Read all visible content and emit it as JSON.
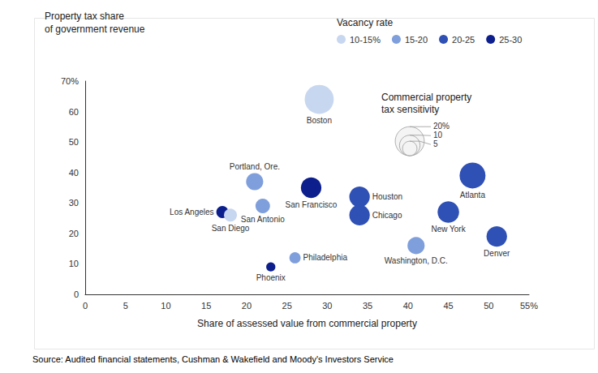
{
  "chart_data": {
    "type": "scatter",
    "y_label": "Property tax share\nof government revenue",
    "x_label": "Share of assessed value from commercial property",
    "source": "Source: Audited financial statements, Cushman & Wakefield and Moody's Investors Service",
    "legend_title": "Vacancy rate",
    "legend": "top-right",
    "grid": false,
    "xlim": [
      0,
      55
    ],
    "xticks": [
      0,
      5,
      10,
      15,
      20,
      25,
      30,
      35,
      40,
      45,
      50,
      {
        "value": 55,
        "label": "55%"
      }
    ],
    "ylim": [
      0,
      70
    ],
    "yticks": [
      0,
      10,
      20,
      30,
      40,
      50,
      60,
      {
        "value": 70,
        "label": "70%"
      }
    ],
    "size_legend": {
      "title": "Commercial property\ntax sensitivity",
      "values": [
        {
          "value": 20,
          "label": "20%"
        },
        10,
        5
      ]
    },
    "series": [
      {
        "name": "10-15%",
        "color": "#c8d7f0",
        "labels": [
          "Boston",
          "San Diego"
        ],
        "x": [
          29,
          18
        ],
        "y": [
          64,
          26
        ],
        "sizes": [
          20,
          4
        ]
      },
      {
        "name": "15-20",
        "color": "#7f9fdc",
        "labels": [
          "Portland, Ore.",
          "San Antonio",
          "Washington, D.C.",
          "Philadelphia"
        ],
        "x": [
          21,
          22,
          41,
          26
        ],
        "y": [
          37,
          29,
          16,
          12
        ],
        "sizes": [
          7,
          5,
          7,
          3
        ]
      },
      {
        "name": "20-25",
        "color": "#2f50b4",
        "labels": [
          "Houston",
          "Chicago",
          "Atlanta",
          "New York",
          "Denver"
        ],
        "x": [
          34,
          34,
          48,
          45,
          51
        ],
        "y": [
          32,
          26,
          39,
          27,
          19
        ],
        "sizes": [
          10,
          10,
          16,
          11,
          10
        ]
      },
      {
        "name": "25-30",
        "color": "#0c1f8c",
        "labels": [
          "San Francisco",
          "Los Angeles",
          "Phoenix"
        ],
        "x": [
          28,
          17,
          23
        ],
        "y": [
          35,
          27,
          9
        ],
        "sizes": [
          10,
          3.5,
          2
        ]
      }
    ]
  }
}
